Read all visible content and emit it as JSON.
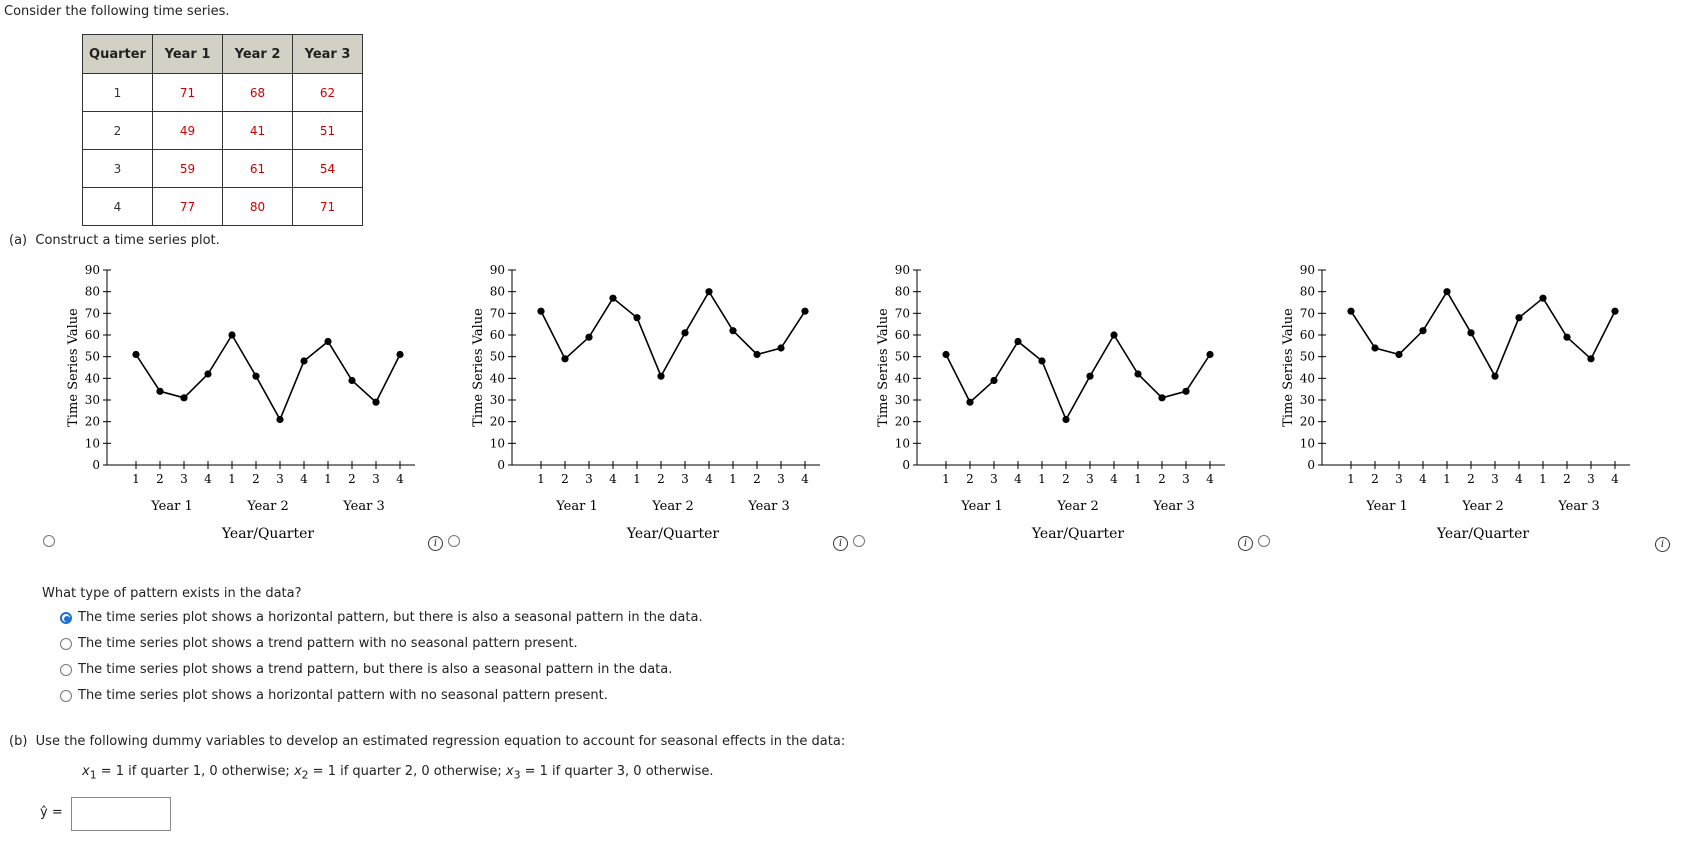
{
  "intro": "Consider the following time series.",
  "table": {
    "headers": [
      "Quarter",
      "Year 1",
      "Year 2",
      "Year 3"
    ],
    "rows": [
      [
        "1",
        "71",
        "68",
        "62"
      ],
      [
        "2",
        "49",
        "41",
        "51"
      ],
      [
        "3",
        "59",
        "61",
        "54"
      ],
      [
        "4",
        "77",
        "80",
        "71"
      ]
    ]
  },
  "part_a": {
    "label": "(a)",
    "text": "Construct a time series plot."
  },
  "chart_data": [
    {
      "type": "line",
      "ylabel": "Time Series Value",
      "xlabel": "Year/Quarter",
      "ylim": [
        0,
        90
      ],
      "yticks": [
        0,
        10,
        20,
        30,
        40,
        50,
        60,
        70,
        80,
        90
      ],
      "categories": [
        "1",
        "2",
        "3",
        "4",
        "1",
        "2",
        "3",
        "4",
        "1",
        "2",
        "3",
        "4"
      ],
      "groups": [
        "Year 1",
        "Year 2",
        "Year 3"
      ],
      "values": [
        51,
        34,
        31,
        42,
        60,
        41,
        21,
        48,
        57,
        39,
        29,
        51
      ],
      "selected": false
    },
    {
      "type": "line",
      "ylabel": "Time Series Value",
      "xlabel": "Year/Quarter",
      "ylim": [
        0,
        90
      ],
      "yticks": [
        0,
        10,
        20,
        30,
        40,
        50,
        60,
        70,
        80,
        90
      ],
      "categories": [
        "1",
        "2",
        "3",
        "4",
        "1",
        "2",
        "3",
        "4",
        "1",
        "2",
        "3",
        "4"
      ],
      "groups": [
        "Year 1",
        "Year 2",
        "Year 3"
      ],
      "values": [
        71,
        49,
        59,
        77,
        68,
        41,
        61,
        80,
        62,
        51,
        54,
        71
      ],
      "selected": false
    },
    {
      "type": "line",
      "ylabel": "Time Series Value",
      "xlabel": "Year/Quarter",
      "ylim": [
        0,
        90
      ],
      "yticks": [
        0,
        10,
        20,
        30,
        40,
        50,
        60,
        70,
        80,
        90
      ],
      "categories": [
        "1",
        "2",
        "3",
        "4",
        "1",
        "2",
        "3",
        "4",
        "1",
        "2",
        "3",
        "4"
      ],
      "groups": [
        "Year 1",
        "Year 2",
        "Year 3"
      ],
      "values": [
        51,
        29,
        39,
        57,
        48,
        21,
        41,
        60,
        42,
        31,
        34,
        51
      ],
      "selected": false
    },
    {
      "type": "line",
      "ylabel": "Time Series Value",
      "xlabel": "Year/Quarter",
      "ylim": [
        0,
        90
      ],
      "yticks": [
        0,
        10,
        20,
        30,
        40,
        50,
        60,
        70,
        80,
        90
      ],
      "categories": [
        "1",
        "2",
        "3",
        "4",
        "1",
        "2",
        "3",
        "4",
        "1",
        "2",
        "3",
        "4"
      ],
      "groups": [
        "Year 1",
        "Year 2",
        "Year 3"
      ],
      "values": [
        71,
        54,
        51,
        62,
        80,
        61,
        41,
        68,
        77,
        59,
        49,
        71
      ],
      "selected": false
    }
  ],
  "question": {
    "text": "What type of pattern exists in the data?",
    "options": [
      {
        "text": "The time series plot shows a horizontal pattern, but there is also a seasonal pattern in the data.",
        "selected": true
      },
      {
        "text": "The time series plot shows a trend pattern with no seasonal pattern present.",
        "selected": false
      },
      {
        "text": "The time series plot shows a trend pattern, but there is also a seasonal pattern in the data.",
        "selected": false
      },
      {
        "text": "The time series plot shows a horizontal pattern with no seasonal pattern present.",
        "selected": false
      }
    ]
  },
  "part_b": {
    "label": "(b)",
    "text": "Use the following dummy variables to develop an estimated regression equation to account for seasonal effects in the data:",
    "dummy": {
      "x": "x",
      "s1": "1",
      "s2": "2",
      "s3": "3",
      "def1": " = 1 if quarter 1, 0 otherwise; ",
      "def2": " = 1 if quarter 2, 0 otherwise; ",
      "def3": " = 1 if quarter 3, 0 otherwise."
    },
    "yhat_label": "ŷ =",
    "answer_value": ""
  },
  "icons": {
    "info": "info-icon",
    "radio": "radio-button"
  }
}
